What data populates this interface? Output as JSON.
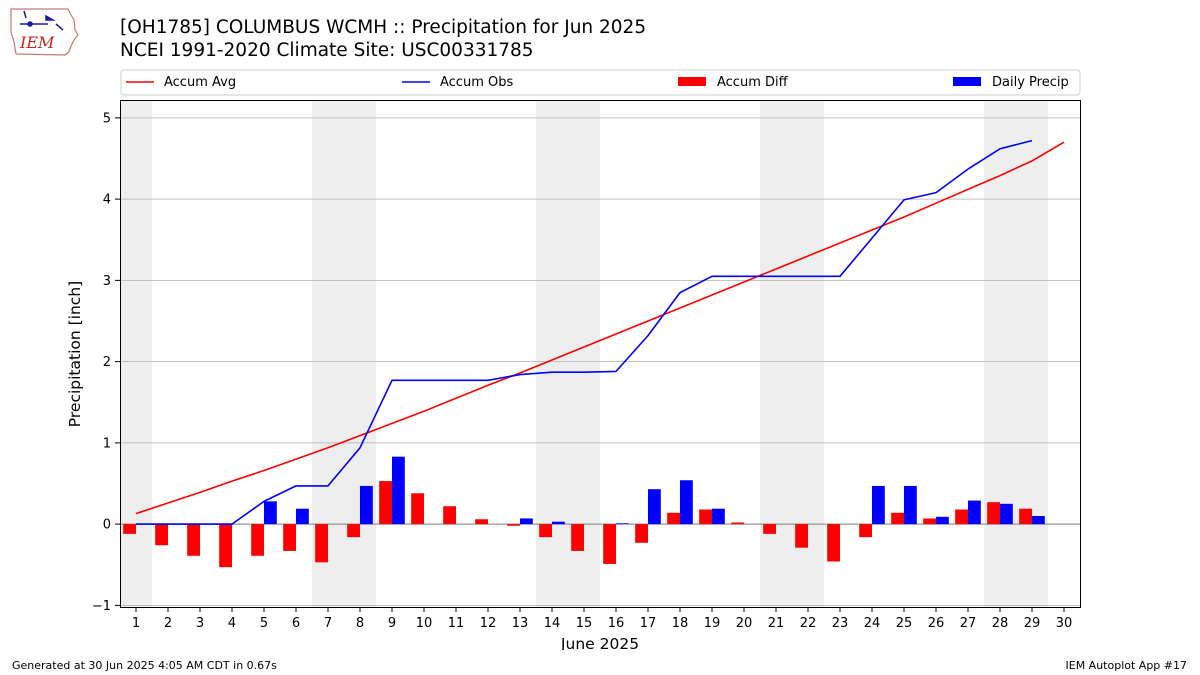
{
  "header": {
    "title_line1": "[OH1785] COLUMBUS WCMH :: Precipitation for Jun 2025",
    "title_line2": "NCEI 1991-2020 Climate Site: USC00331785"
  },
  "logo": {
    "text": "IEM"
  },
  "footer": {
    "left": "Generated at 30 Jun 2025 4:05 AM CDT in 0.67s",
    "right": "IEM Autoplot App #17"
  },
  "colors": {
    "accum_avg": "#ff0000",
    "accum_obs": "#0000ff",
    "accum_diff": "#ff0000",
    "daily_precip": "#0000ff",
    "weekend_shade": "#eeeeee",
    "grid": "#b0b0b0"
  },
  "chart_data": {
    "type": "bar",
    "xlabel": "June 2025",
    "ylabel": "Precipitation [inch]",
    "xlim": [
      0.5,
      30.5
    ],
    "ylim": [
      -1.02,
      5.22
    ],
    "x_ticks": [
      1,
      2,
      3,
      4,
      5,
      6,
      7,
      8,
      9,
      10,
      11,
      12,
      13,
      14,
      15,
      16,
      17,
      18,
      19,
      20,
      21,
      22,
      23,
      24,
      25,
      26,
      27,
      28,
      29,
      30
    ],
    "y_ticks": [
      -1,
      0,
      1,
      2,
      3,
      4,
      5
    ],
    "grid": "horizontal",
    "legend": {
      "placement": "top",
      "entries": [
        "Accum Avg",
        "Accum Obs",
        "Accum Diff",
        "Daily Precip"
      ]
    },
    "shaded_day_ranges": [
      [
        0.5,
        1.5
      ],
      [
        6.5,
        8.5
      ],
      [
        13.5,
        15.5
      ],
      [
        20.5,
        22.5
      ],
      [
        27.5,
        29.5
      ]
    ],
    "days": [
      1,
      2,
      3,
      4,
      5,
      6,
      7,
      8,
      9,
      10,
      11,
      12,
      13,
      14,
      15,
      16,
      17,
      18,
      19,
      20,
      21,
      22,
      23,
      24,
      25,
      26,
      27,
      28,
      29,
      30
    ],
    "series": [
      {
        "name": "Accum Avg",
        "kind": "line",
        "values": [
          0.13,
          0.26,
          0.39,
          0.53,
          0.66,
          0.8,
          0.94,
          1.09,
          1.24,
          1.39,
          1.55,
          1.71,
          1.86,
          2.02,
          2.18,
          2.34,
          2.5,
          2.66,
          2.82,
          2.98,
          3.14,
          3.3,
          3.46,
          3.62,
          3.78,
          3.95,
          4.12,
          4.29,
          4.47,
          4.7
        ]
      },
      {
        "name": "Accum Obs",
        "kind": "line",
        "values": [
          0.0,
          0.0,
          0.0,
          0.0,
          0.28,
          0.47,
          0.47,
          0.94,
          1.77,
          1.77,
          1.77,
          1.77,
          1.84,
          1.87,
          1.87,
          1.88,
          2.32,
          2.85,
          3.05,
          3.05,
          3.05,
          3.05,
          3.05,
          3.52,
          3.99,
          4.08,
          4.37,
          4.62,
          4.72,
          null
        ]
      },
      {
        "name": "Accum Diff",
        "kind": "bar",
        "values": [
          -0.12,
          -0.26,
          -0.39,
          -0.53,
          -0.39,
          -0.33,
          -0.47,
          -0.16,
          0.53,
          0.38,
          0.22,
          0.06,
          -0.02,
          -0.16,
          -0.33,
          -0.49,
          -0.23,
          0.14,
          0.18,
          0.02,
          -0.12,
          -0.29,
          -0.46,
          -0.16,
          0.14,
          0.07,
          0.18,
          0.27,
          0.19,
          null
        ]
      },
      {
        "name": "Daily Precip",
        "kind": "bar",
        "values": [
          0.0,
          0.0,
          0.0,
          0.0,
          0.28,
          0.19,
          0.0,
          0.47,
          0.83,
          0.0,
          0.0,
          0.0,
          0.07,
          0.03,
          0.0,
          0.01,
          0.43,
          0.54,
          0.19,
          0.0,
          0.0,
          0.0,
          0.0,
          0.47,
          0.47,
          0.09,
          0.29,
          0.25,
          0.1,
          null
        ]
      }
    ]
  }
}
